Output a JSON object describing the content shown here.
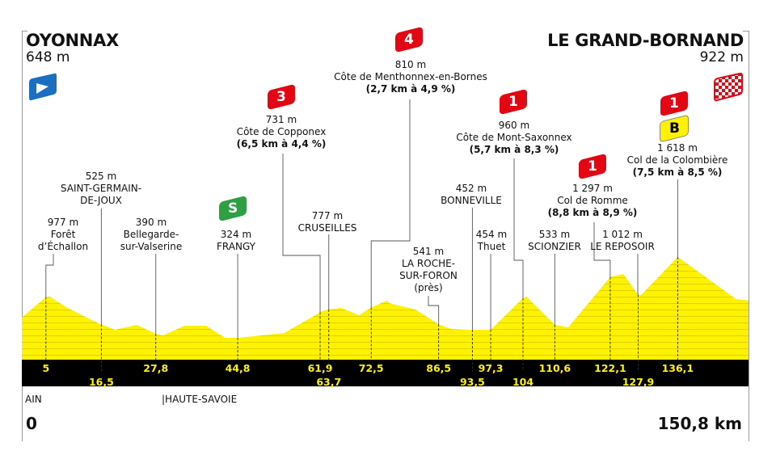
{
  "start": {
    "town": "OYONNAX",
    "elevation": "648 m",
    "icon": "start-flag-icon",
    "color": "#1a6fc0"
  },
  "finish": {
    "town": "LE GRAND-BORNAND",
    "elevation": "922 m",
    "icon": "checkered-finish-flag-icon",
    "color": "#e30613"
  },
  "regions": [
    "AIN",
    "|HAUTE-SAVOIE"
  ],
  "distance": {
    "start_label": "0",
    "end_label": "150,8 km"
  },
  "colors": {
    "profile": "#fff200",
    "band": "#000000",
    "tick_text": "#fff200",
    "climb_badge": "#e30613",
    "sprint_badge": "#2ea043",
    "bonus_badge": "#fff200"
  },
  "markers": [
    {
      "km": 5,
      "elevation": "977 m",
      "name_lines": [
        "Forêt",
        "d’Échallon"
      ]
    },
    {
      "km": 16.5,
      "elevation": "525 m",
      "name_lines": [
        "SAINT-GERMAIN-",
        "DE-JOUX"
      ]
    },
    {
      "km": 27.8,
      "elevation": "390 m",
      "name_lines": [
        "Bellegarde-",
        "sur-Valserine"
      ]
    },
    {
      "km": 44.8,
      "elevation": "324 m",
      "name_lines": [
        "FRANGY"
      ],
      "badges": [
        {
          "type": "sprint",
          "label": "S"
        }
      ]
    },
    {
      "km": 61.9,
      "elevation": "731 m",
      "name_lines": [
        "Côte de Copponex"
      ],
      "stats": "(6,5 km à 4,4 %)",
      "badges": [
        {
          "type": "climb",
          "label": "3"
        }
      ]
    },
    {
      "km": 63.7,
      "elevation": "777 m",
      "name_lines": [
        "CRUSEILLES"
      ]
    },
    {
      "km": 72.5,
      "elevation": "810 m",
      "name_lines": [
        "Côte de Menthonnex-en-Bornes"
      ],
      "stats": "(2,7 km à 4,9 %)",
      "badges": [
        {
          "type": "climb",
          "label": "4"
        }
      ]
    },
    {
      "km": 86.5,
      "elevation": "541 m",
      "name_lines": [
        "LA ROCHE-",
        "SUR-FORON",
        "(près)"
      ]
    },
    {
      "km": 93.5,
      "elevation": "452 m",
      "name_lines": [
        "BONNEVILLE"
      ]
    },
    {
      "km": 97.3,
      "elevation": "454 m",
      "name_lines": [
        "Thuet"
      ]
    },
    {
      "km": 104,
      "elevation": "960 m",
      "name_lines": [
        "Côte de Mont-Saxonnex"
      ],
      "stats": "(5,7 km à 8,3 %)",
      "badges": [
        {
          "type": "climb",
          "label": "1"
        }
      ]
    },
    {
      "km": 110.6,
      "elevation": "533 m",
      "name_lines": [
        "SCIONZIER"
      ]
    },
    {
      "km": 122.1,
      "elevation": "1 297 m",
      "name_lines": [
        "Col de Romme"
      ],
      "stats": "(8,8 km à 8,9 %)",
      "badges": [
        {
          "type": "climb",
          "label": "1"
        }
      ]
    },
    {
      "km": 127.9,
      "elevation": "1 012 m",
      "name_lines": [
        "LE REPOSOIR"
      ]
    },
    {
      "km": 136.1,
      "elevation": "1 618 m",
      "name_lines": [
        "Col de la Colombière"
      ],
      "stats": "(7,5 km à 8,5 %)",
      "badges": [
        {
          "type": "climb",
          "label": "1"
        },
        {
          "type": "bonus",
          "label": "B"
        }
      ]
    }
  ],
  "chart_data": {
    "type": "area",
    "x_unit": "km",
    "y_unit": "m",
    "xlim": [
      0,
      150.8
    ],
    "km_ticks": [
      "5",
      "16,5",
      "27,8",
      "44,8",
      "61,9",
      "63,7",
      "72,5",
      "86,5",
      "93,5",
      "97,3",
      "104",
      "110,6",
      "122,1",
      "127,9",
      "136,1"
    ],
    "profile": [
      [
        0,
        648
      ],
      [
        5,
        977
      ],
      [
        5.8,
        983
      ],
      [
        9.2,
        815
      ],
      [
        15.9,
        556
      ],
      [
        19.3,
        453
      ],
      [
        23.8,
        530
      ],
      [
        27.8,
        390
      ],
      [
        29.3,
        362
      ],
      [
        33.8,
        517
      ],
      [
        38.2,
        517
      ],
      [
        42.2,
        323
      ],
      [
        44.8,
        324
      ],
      [
        54.4,
        400
      ],
      [
        61.9,
        731
      ],
      [
        62.3,
        750
      ],
      [
        63.7,
        777
      ],
      [
        66.2,
        802
      ],
      [
        70,
        686
      ],
      [
        72.5,
        810
      ],
      [
        75.7,
        918
      ],
      [
        76.2,
        880
      ],
      [
        81.7,
        776
      ],
      [
        86.5,
        541
      ],
      [
        89,
        466
      ],
      [
        93.5,
        452
      ],
      [
        97.3,
        454
      ],
      [
        104,
        960
      ],
      [
        104.7,
        983
      ],
      [
        110.6,
        533
      ],
      [
        113.4,
        490
      ],
      [
        122.1,
        1297
      ],
      [
        122.6,
        1307
      ],
      [
        124.8,
        1345
      ],
      [
        127.9,
        1012
      ],
      [
        128.5,
        1009
      ],
      [
        136.1,
        1618
      ],
      [
        148.2,
        944
      ],
      [
        150.8,
        922
      ]
    ]
  }
}
